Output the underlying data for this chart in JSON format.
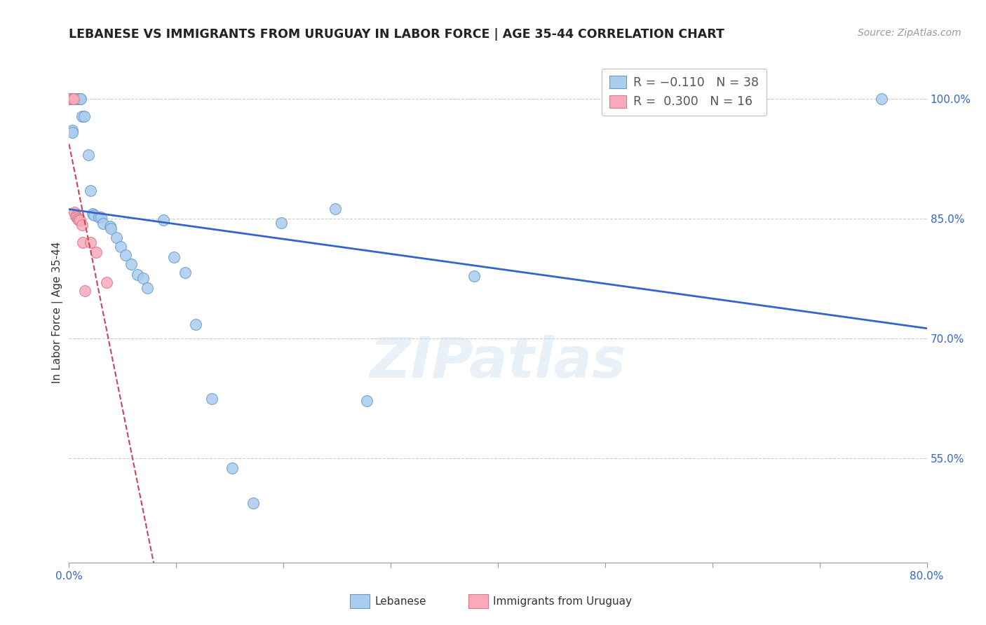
{
  "title": "LEBANESE VS IMMIGRANTS FROM URUGUAY IN LABOR FORCE | AGE 35-44 CORRELATION CHART",
  "source": "Source: ZipAtlas.com",
  "ylabel": "In Labor Force | Age 35-44",
  "watermark": "ZIPatlas",
  "x_min": 0.0,
  "x_max": 0.8,
  "y_min": 0.42,
  "y_max": 1.045,
  "x_ticks": [
    0.0,
    0.1,
    0.2,
    0.3,
    0.4,
    0.5,
    0.6,
    0.7,
    0.8
  ],
  "y_ticks": [
    0.55,
    0.7,
    0.85,
    1.0
  ],
  "y_tick_labels": [
    "55.0%",
    "70.0%",
    "85.0%",
    "100.0%"
  ],
  "blue_line_color": "#3366cc",
  "pink_line_color": "#cc4455",
  "grid_color": "#cccccc",
  "background_color": "#ffffff",
  "dot_blue": "#aaccee",
  "dot_pink": "#f8aabc",
  "dot_edge_blue": "#6699cc",
  "dot_edge_pink": "#dd7788",
  "blue_dots": [
    [
      0.001,
      1.0
    ],
    [
      0.003,
      0.96
    ],
    [
      0.003,
      0.958
    ],
    [
      0.006,
      1.0
    ],
    [
      0.007,
      1.0
    ],
    [
      0.009,
      1.0
    ],
    [
      0.01,
      1.0
    ],
    [
      0.011,
      1.0
    ],
    [
      0.012,
      0.978
    ],
    [
      0.014,
      0.978
    ],
    [
      0.018,
      0.93
    ],
    [
      0.02,
      0.885
    ],
    [
      0.022,
      0.856
    ],
    [
      0.023,
      0.854
    ],
    [
      0.028,
      0.852
    ],
    [
      0.03,
      0.852
    ],
    [
      0.032,
      0.844
    ],
    [
      0.038,
      0.84
    ],
    [
      0.039,
      0.838
    ],
    [
      0.044,
      0.826
    ],
    [
      0.048,
      0.815
    ],
    [
      0.053,
      0.804
    ],
    [
      0.058,
      0.793
    ],
    [
      0.064,
      0.78
    ],
    [
      0.069,
      0.775
    ],
    [
      0.073,
      0.763
    ],
    [
      0.088,
      0.848
    ],
    [
      0.098,
      0.802
    ],
    [
      0.108,
      0.782
    ],
    [
      0.118,
      0.718
    ],
    [
      0.133,
      0.625
    ],
    [
      0.152,
      0.538
    ],
    [
      0.172,
      0.494
    ],
    [
      0.198,
      0.845
    ],
    [
      0.248,
      0.862
    ],
    [
      0.278,
      0.622
    ],
    [
      0.378,
      0.778
    ],
    [
      0.758,
      1.0
    ]
  ],
  "pink_dots": [
    [
      0.001,
      1.0
    ],
    [
      0.002,
      1.0
    ],
    [
      0.003,
      1.0
    ],
    [
      0.004,
      1.0
    ],
    [
      0.005,
      0.858
    ],
    [
      0.006,
      0.853
    ],
    [
      0.007,
      0.852
    ],
    [
      0.008,
      0.85
    ],
    [
      0.009,
      0.848
    ],
    [
      0.01,
      0.848
    ],
    [
      0.012,
      0.842
    ],
    [
      0.013,
      0.82
    ],
    [
      0.015,
      0.76
    ],
    [
      0.02,
      0.82
    ],
    [
      0.025,
      0.808
    ],
    [
      0.035,
      0.77
    ]
  ]
}
